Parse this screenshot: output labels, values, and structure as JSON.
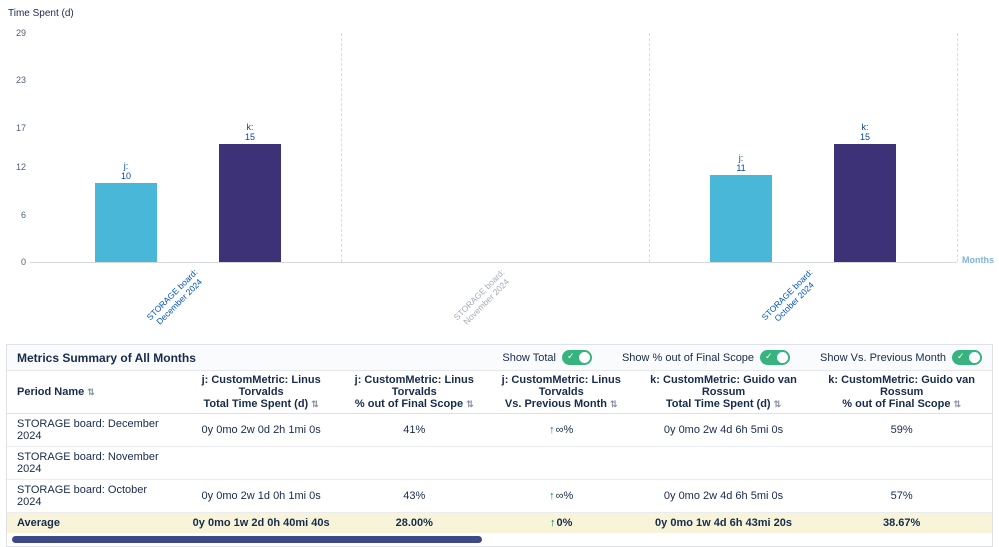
{
  "chart_data": {
    "type": "bar",
    "title": "",
    "ylabel": "Time Spent (d)",
    "xlabel": "Months",
    "ylim": [
      0,
      29
    ],
    "yticks": [
      29,
      23,
      17,
      12,
      6,
      0
    ],
    "categories": [
      "STORAGE board: December 2024",
      "STORAGE board: November 2024",
      "STORAGE board: October 2024"
    ],
    "category_label_colors": [
      "#0052cc",
      "#a5adba",
      "#0052cc"
    ],
    "series": [
      {
        "name": "j",
        "color": "#49b7d8",
        "values": [
          10,
          null,
          11
        ]
      },
      {
        "name": "k",
        "color": "#3d3177",
        "values": [
          15,
          null,
          15
        ]
      }
    ],
    "legend_position": "none",
    "grid": "dashed vertical separators between month groups"
  },
  "table": {
    "title": "Metrics Summary of All Months",
    "toggles": [
      {
        "label": "Show Total",
        "state": "on"
      },
      {
        "label": "Show % out of Final Scope",
        "state": "on"
      },
      {
        "label": "Show Vs. Previous Month",
        "state": "on"
      }
    ],
    "columns": [
      {
        "label": "Period Name"
      },
      {
        "label": "j: CustomMetric: Linus Torvalds\nTotal Time Spent (d)"
      },
      {
        "label": "j: CustomMetric: Linus Torvalds\n% out of Final Scope"
      },
      {
        "label": "j: CustomMetric: Linus Torvalds\nVs. Previous Month"
      },
      {
        "label": "k: CustomMetric: Guido van Rossum\nTotal Time Spent (d)"
      },
      {
        "label": "k: CustomMetric: Guido van Rossum\n% out of Final Scope"
      }
    ],
    "rows": [
      [
        "STORAGE board: December 2024",
        "0y 0mo 2w 0d 2h 1mi 0s",
        "41%",
        "↑∞%",
        "0y 0mo 2w 4d 6h 5mi 0s",
        "59%"
      ],
      [
        "STORAGE board: November 2024",
        "",
        "",
        "",
        "",
        ""
      ],
      [
        "STORAGE board: October 2024",
        "0y 0mo 2w 1d 0h 1mi 0s",
        "43%",
        "↑∞%",
        "0y 0mo 2w 4d 6h 5mi 0s",
        "57%"
      ]
    ],
    "average_row": [
      "Average",
      "0y 0mo 1w 2d 0h 40mi 40s",
      "28.00%",
      "↑0%",
      "0y 0mo 1w 4d 6h 43mi 20s",
      "38.67%"
    ]
  },
  "colors": {
    "toggle_on": "#36b37e",
    "positive": "#00875a",
    "average_row_bg": "#f7f4d9",
    "bar_value_label": "#0747a6",
    "months_label": "#7fb3de"
  }
}
